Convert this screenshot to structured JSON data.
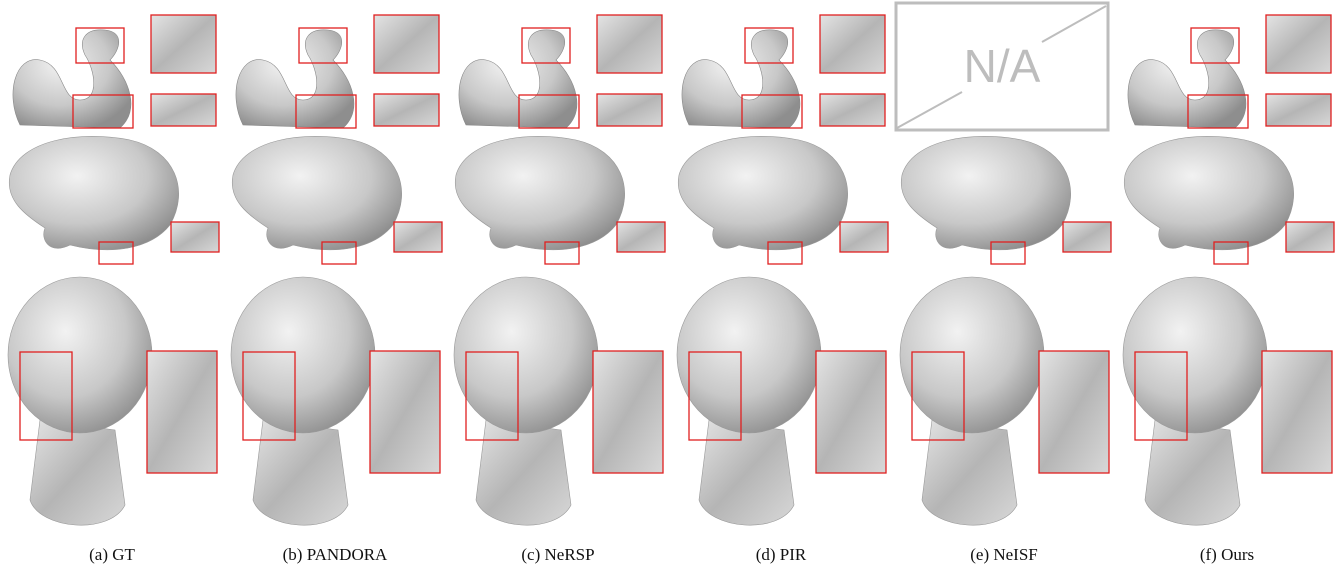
{
  "figure": {
    "captions": [
      "(a) GT",
      "(b) PANDORA",
      "(c) NeRSP",
      "(d) PIR",
      "(e) NeISF",
      "(f) Ours"
    ],
    "missing_label": "N/A"
  }
}
